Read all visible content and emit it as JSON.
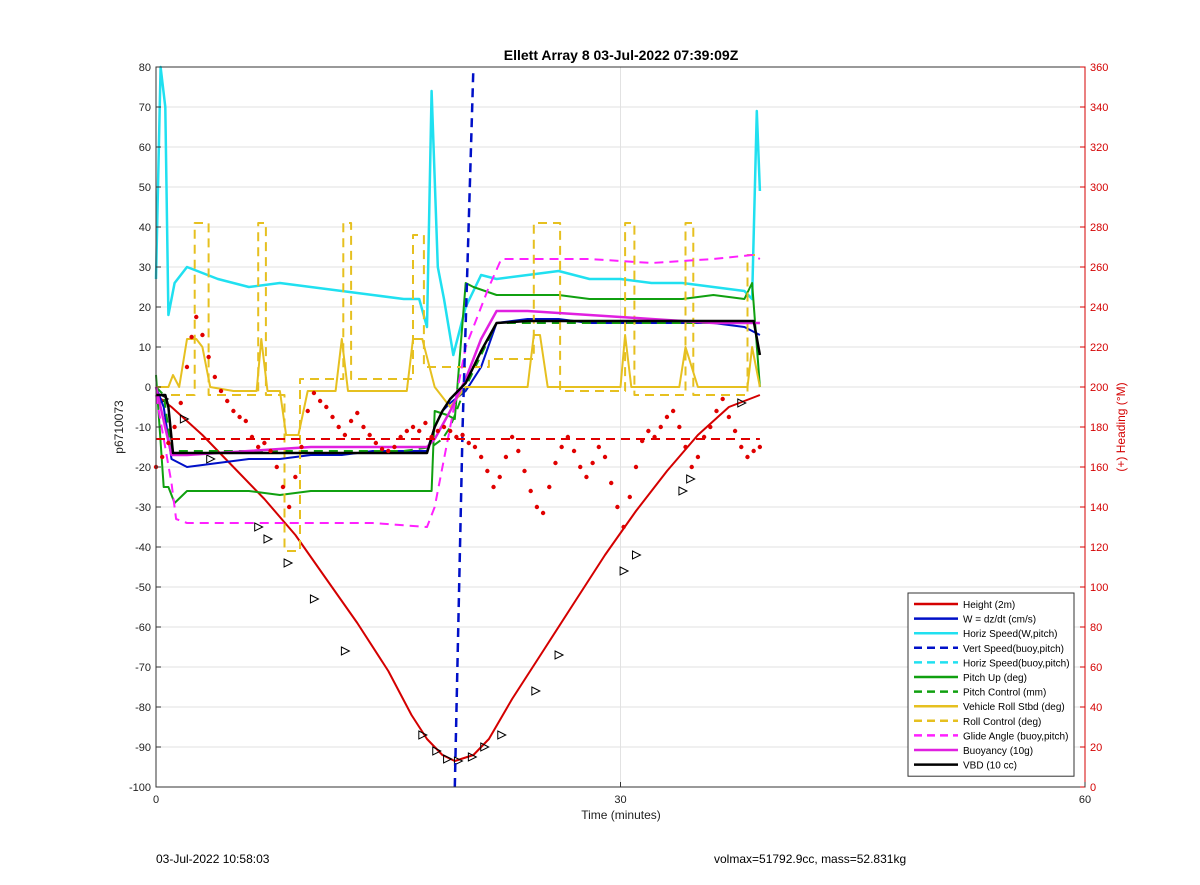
{
  "footer": {
    "left": "03-Jul-2022 10:58:03",
    "right": "volmax=51792.9cc, mass=52.831kg"
  },
  "chart_data": {
    "type": "line",
    "title": "Ellett Array 8 03-Jul-2022 07:39:09Z",
    "xlabel": "Time (minutes)",
    "ylabel": "p6710073",
    "y2label": "(+) Heading (°M)",
    "xlim": [
      0,
      60
    ],
    "ylim": [
      -100,
      80
    ],
    "y2lim": [
      0,
      360
    ],
    "xticks": [
      0,
      30,
      60
    ],
    "yticks": [
      -100,
      -90,
      -80,
      -70,
      -60,
      -50,
      -40,
      -30,
      -20,
      -10,
      0,
      10,
      20,
      30,
      40,
      50,
      60,
      70,
      80
    ],
    "y2ticks": [
      0,
      20,
      40,
      60,
      80,
      100,
      120,
      140,
      160,
      180,
      200,
      220,
      240,
      260,
      280,
      300,
      320,
      340,
      360
    ],
    "grid": true,
    "legend_position": "bottom-right",
    "colors": {
      "height": "#d40000",
      "w": "#0010c8",
      "horiz": "#20e0f0",
      "pitch": "#10a010",
      "roll": "#e6c020",
      "glide": "#ff20ff",
      "buoy": "#e020e0",
      "vbd": "#000000",
      "heading": "#e00000"
    },
    "legend": [
      {
        "label": "Height (2m)",
        "color": "#d40000",
        "dash": false
      },
      {
        "label": "W = dz/dt (cm/s)",
        "color": "#0010c8",
        "dash": false
      },
      {
        "label": "Horiz Speed(W,pitch)",
        "color": "#20e0f0",
        "dash": false
      },
      {
        "label": "Vert Speed(buoy,pitch)",
        "color": "#0010c8",
        "dash": true
      },
      {
        "label": "Horiz Speed(buoy,pitch)",
        "color": "#20e0f0",
        "dash": true
      },
      {
        "label": "Pitch Up (deg)",
        "color": "#10a010",
        "dash": false
      },
      {
        "label": "Pitch Control (mm)",
        "color": "#10a010",
        "dash": true
      },
      {
        "label": "Vehicle Roll Stbd (deg)",
        "color": "#e6c020",
        "dash": false
      },
      {
        "label": "Roll Control (deg)",
        "color": "#e6c020",
        "dash": true
      },
      {
        "label": "Glide Angle (buoy,pitch)",
        "color": "#ff20ff",
        "dash": true
      },
      {
        "label": "Buoyancy (10g)",
        "color": "#e020e0",
        "dash": false
      },
      {
        "label": "VBD (10 cc)",
        "color": "#000000",
        "dash": false
      }
    ],
    "series": [
      {
        "key": "height",
        "color": "#d40000",
        "dash": false,
        "width": 2,
        "x": [
          0,
          1,
          3,
          5,
          7,
          9,
          11,
          13,
          15,
          16.5,
          17.5,
          18.5,
          19.3,
          20.5,
          21.5,
          23,
          25,
          27,
          29,
          31,
          33,
          35,
          37,
          39
        ],
        "y": [
          -2,
          -5,
          -12,
          -20,
          -28,
          -37,
          -48,
          -59,
          -71,
          -82,
          -88,
          -92,
          -93.5,
          -92,
          -88,
          -78,
          -66,
          -54,
          -42,
          -31,
          -21,
          -12,
          -5,
          -2
        ]
      },
      {
        "key": "height_markers",
        "color": "#000000",
        "marker": "triangle",
        "x": [
          0.5,
          1.8,
          3.5,
          6.6,
          7.2,
          8.5,
          10.2,
          12.2,
          17.2,
          18.1,
          18.8,
          19.5,
          20.4,
          21.2,
          22.3,
          24.5,
          26.0,
          30.2,
          31.0,
          34.0,
          34.5,
          37.8
        ],
        "y": [
          -3,
          -8,
          -18,
          -35,
          -38,
          -44,
          -53,
          -66,
          -87,
          -91,
          -93,
          -93.5,
          -92.5,
          -90,
          -87,
          -76,
          -67,
          -46,
          -42,
          -26,
          -23,
          -4
        ]
      },
      {
        "key": "w",
        "color": "#0010c8",
        "dash": false,
        "width": 2,
        "x": [
          0,
          0.5,
          1,
          2,
          4,
          6,
          8,
          10,
          12,
          14,
          16,
          17.5,
          18,
          18.5,
          19,
          20,
          21,
          22,
          24,
          26,
          28,
          30,
          32,
          34,
          36,
          38,
          39
        ],
        "y": [
          0,
          -5,
          -18,
          -20,
          -19,
          -18,
          -18,
          -17,
          -17,
          -16,
          -16,
          -16,
          -10,
          -6,
          -4,
          -1,
          5,
          16,
          17,
          17,
          16,
          16,
          16,
          16,
          16,
          15,
          13
        ]
      },
      {
        "key": "horiz",
        "color": "#20e0f0",
        "dash": false,
        "width": 2.5,
        "x": [
          0,
          0.3,
          0.6,
          0.8,
          1.2,
          2,
          4,
          6,
          8,
          10,
          12,
          14,
          16,
          17,
          17.5,
          17.8,
          18.2,
          18.6,
          19.2,
          20,
          21,
          22,
          24,
          26,
          28,
          30,
          32,
          34,
          36,
          38,
          38.5,
          38.8,
          39
        ],
        "y": [
          27,
          80,
          70,
          18,
          26,
          30,
          27,
          25,
          26,
          25,
          24,
          23,
          22,
          22,
          15,
          74,
          30,
          22,
          8,
          20,
          28,
          27,
          28,
          29,
          27,
          27,
          26,
          26,
          25,
          24,
          22,
          69,
          49
        ]
      },
      {
        "key": "pitch",
        "color": "#10a010",
        "dash": false,
        "width": 2,
        "x": [
          0,
          0.5,
          0.8,
          1.2,
          2,
          4,
          6,
          8,
          10,
          12,
          14,
          16,
          17.8,
          18,
          18.8,
          19.3,
          20,
          20.5,
          22,
          24,
          26,
          28,
          30,
          32,
          34,
          36,
          38,
          38.5,
          39
        ],
        "y": [
          3,
          -25,
          -25,
          -29,
          -26,
          -26,
          -26,
          -27,
          -26,
          -26,
          -26,
          -26,
          -26,
          -6,
          -7,
          -8,
          26,
          25,
          23,
          23,
          23,
          22,
          22,
          22,
          22,
          23,
          22,
          26,
          0
        ]
      },
      {
        "key": "pitch_control",
        "color": "#10a010",
        "dash": true,
        "width": 2,
        "x": [
          0,
          0.5,
          1,
          4,
          8,
          12,
          16,
          17.8,
          18.5,
          19,
          20,
          21,
          22,
          24,
          28,
          32,
          36,
          38,
          39
        ],
        "y": [
          0,
          -2,
          -16,
          -16,
          -16,
          -16,
          -16,
          -15,
          -13,
          -10,
          0,
          8,
          16,
          16,
          16,
          16,
          16,
          16,
          16
        ]
      },
      {
        "key": "roll",
        "color": "#e6c020",
        "dash": false,
        "width": 2,
        "x": [
          0,
          0.8,
          1.1,
          1.5,
          2,
          2.6,
          3,
          3.5,
          5,
          6.5,
          6.8,
          7.2,
          8,
          8.4,
          9.2,
          9.8,
          11.6,
          12,
          12.4,
          13,
          15,
          16.2,
          16.6,
          17.2,
          18,
          18.4,
          19,
          20,
          22,
          24,
          24.4,
          24.8,
          25.3,
          26,
          29,
          30,
          30.3,
          30.7,
          33,
          33.8,
          34.2,
          35,
          37.5,
          38.2,
          38.5,
          39
        ],
        "y": [
          0,
          0,
          3,
          0,
          12,
          12,
          10,
          0,
          -1,
          -1,
          12,
          -1,
          -1,
          -12,
          -12,
          -1,
          -1,
          12,
          -1,
          -1,
          -1,
          -1,
          12,
          12,
          0,
          -2,
          -5,
          0,
          0,
          0,
          13,
          13,
          0,
          0,
          0,
          0,
          13,
          0,
          0,
          0,
          10,
          0,
          0,
          0,
          10,
          0
        ]
      },
      {
        "key": "roll_control",
        "color": "#e6c020",
        "dash": true,
        "width": 2,
        "x": [
          0,
          2.5,
          2.5,
          3.4,
          3.4,
          6.6,
          6.6,
          7.1,
          7.1,
          8.3,
          8.3,
          9.3,
          9.3,
          12.1,
          12.1,
          12.6,
          12.6,
          16.6,
          16.6,
          17.3,
          17.3,
          21.5,
          21.5,
          24.4,
          24.4,
          26.1,
          26.1,
          30.3,
          30.3,
          30.9,
          30.9,
          34.2,
          34.2,
          34.7,
          34.7,
          38.2,
          38.2,
          39
        ],
        "y": [
          -2,
          -2,
          41,
          41,
          -2,
          -2,
          41,
          41,
          -2,
          -2,
          -41,
          -41,
          2,
          2,
          41,
          41,
          2,
          2,
          38,
          38,
          5,
          5,
          7,
          7,
          41,
          41,
          -1,
          -1,
          41,
          41,
          -2,
          -2,
          41,
          41,
          -2,
          -2,
          33,
          33
        ]
      },
      {
        "key": "glide",
        "color": "#ff20ff",
        "dash": true,
        "width": 2,
        "x": [
          0,
          1,
          1.3,
          2,
          6,
          10,
          14,
          17.5,
          18,
          19,
          20,
          21.5,
          22.3,
          24,
          28,
          32,
          36,
          38.5,
          39
        ],
        "y": [
          -2,
          -24,
          -33,
          -34,
          -34,
          -34,
          -34,
          -35,
          -30,
          -10,
          10,
          25,
          32,
          32,
          32,
          31,
          32,
          33,
          32
        ]
      },
      {
        "key": "buoy",
        "color": "#e020e0",
        "dash": false,
        "width": 2.5,
        "x": [
          0,
          1,
          2,
          6,
          10,
          14,
          17.5,
          18,
          19,
          20,
          21,
          22,
          24,
          28,
          32,
          36,
          38.5,
          39
        ],
        "y": [
          0,
          -17,
          -17,
          -16,
          -15,
          -15,
          -15,
          -13,
          -6,
          2,
          12,
          19,
          19,
          18,
          17,
          16,
          16,
          16
        ]
      },
      {
        "key": "vbd",
        "color": "#000000",
        "dash": false,
        "width": 2.5,
        "x": [
          0,
          0.6,
          0.8,
          1.1,
          2,
          6,
          10,
          14,
          17.5,
          18,
          18.5,
          19,
          20,
          21,
          22,
          24,
          28,
          32,
          36,
          38.6,
          39
        ],
        "y": [
          -2,
          -2,
          -5,
          -16.5,
          -16.5,
          -16.5,
          -16.5,
          -16.5,
          -16.5,
          -10,
          -6,
          -3,
          1,
          9,
          16,
          16.5,
          16.5,
          16.5,
          16.5,
          16.5,
          8
        ]
      },
      {
        "key": "vert_speed",
        "color": "#0010c8",
        "dash": true,
        "width": 2.5,
        "x": [
          19.3,
          19.55,
          19.8,
          20.5
        ],
        "y": [
          -100,
          -55,
          -10,
          80
        ]
      },
      {
        "key": "heading_mean",
        "color": "#e00000",
        "dash": true,
        "width": 2,
        "axis": "y2",
        "x": [
          0,
          39
        ],
        "y": [
          174,
          174
        ]
      },
      {
        "key": "heading",
        "color": "#e00000",
        "marker": "dot",
        "axis": "y2",
        "x": [
          0,
          0.4,
          0.8,
          1.2,
          1.6,
          2,
          2.3,
          2.6,
          3,
          3.4,
          3.8,
          4.2,
          4.6,
          5,
          5.4,
          5.8,
          6.2,
          6.6,
          7,
          7.4,
          7.8,
          8.2,
          8.6,
          9,
          9.4,
          9.8,
          10.2,
          10.6,
          11,
          11.4,
          11.8,
          12.2,
          12.6,
          13,
          13.4,
          13.8,
          14.2,
          14.6,
          15,
          15.4,
          15.8,
          16.2,
          16.6,
          17,
          17.4,
          17.8,
          18.2,
          18.6,
          19,
          19.4,
          19.8,
          20.2,
          20.6,
          21,
          21.4,
          21.8,
          22.2,
          22.6,
          23,
          23.4,
          23.8,
          24.2,
          24.6,
          25,
          25.4,
          25.8,
          26.2,
          26.6,
          27,
          27.4,
          27.8,
          28.2,
          28.6,
          29,
          29.4,
          29.8,
          30.2,
          30.6,
          31,
          31.4,
          31.8,
          32.2,
          32.6,
          33,
          33.4,
          33.8,
          34.2,
          34.6,
          35,
          35.4,
          35.8,
          36.2,
          36.6,
          37,
          37.4,
          37.8,
          38.2,
          38.6,
          39
        ],
        "y": [
          160,
          165,
          172,
          180,
          192,
          210,
          225,
          235,
          226,
          215,
          205,
          198,
          193,
          188,
          185,
          183,
          175,
          170,
          172,
          168,
          160,
          150,
          140,
          155,
          170,
          188,
          197,
          193,
          190,
          185,
          180,
          176,
          183,
          187,
          180,
          176,
          172,
          169,
          168,
          170,
          175,
          178,
          180,
          178,
          182,
          175,
          178,
          180,
          178,
          175,
          176,
          172,
          170,
          165,
          158,
          150,
          155,
          165,
          175,
          168,
          158,
          148,
          140,
          137,
          150,
          162,
          170,
          175,
          168,
          160,
          155,
          162,
          170,
          165,
          152,
          140,
          130,
          145,
          160,
          173,
          178,
          175,
          180,
          185,
          188,
          180,
          170,
          160,
          165,
          175,
          180,
          188,
          194,
          185,
          178,
          170,
          165,
          168,
          170
        ]
      }
    ]
  }
}
